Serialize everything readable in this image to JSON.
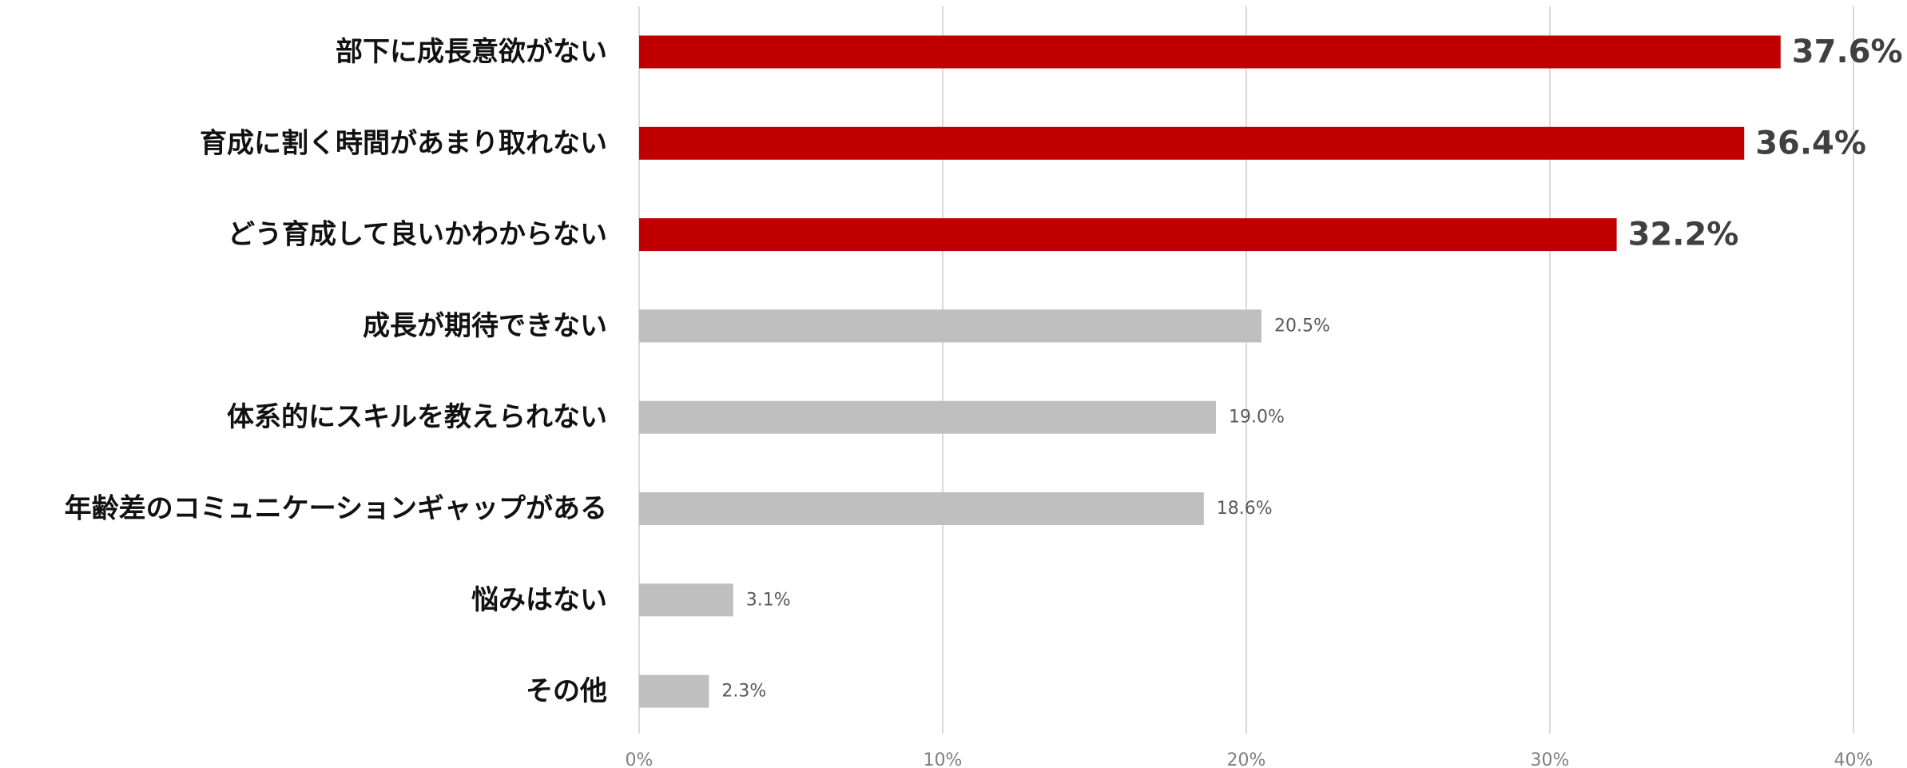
{
  "chart_data": {
    "type": "bar",
    "orientation": "horizontal",
    "categories": [
      "部下に成長意欲がない",
      "育成に割く時間があまり取れない",
      "どう育成して良いかわからない",
      "成長が期待できない",
      "体系的にスキルを教えられない",
      "年齢差のコミュニケーションギャップがある",
      "悩みはない",
      "その他"
    ],
    "values": [
      37.6,
      36.4,
      32.2,
      20.5,
      19.0,
      18.6,
      3.1,
      2.3
    ],
    "value_labels": [
      "37.6%",
      "36.4%",
      "32.2%",
      "20.5%",
      "19.0%",
      "18.6%",
      "3.1%",
      "2.3%"
    ],
    "highlighted": [
      true,
      true,
      true,
      false,
      false,
      false,
      false,
      false
    ],
    "xlim": [
      0,
      40
    ],
    "x_ticks": [
      0,
      10,
      20,
      30,
      40
    ],
    "x_tick_labels": [
      "0%",
      "10%",
      "20%",
      "30%",
      "40%"
    ],
    "grid": true,
    "legend": "none",
    "colors": {
      "highlight": "#c00000",
      "normal": "#bfbfbf",
      "grid": "#d9d9d9"
    }
  }
}
